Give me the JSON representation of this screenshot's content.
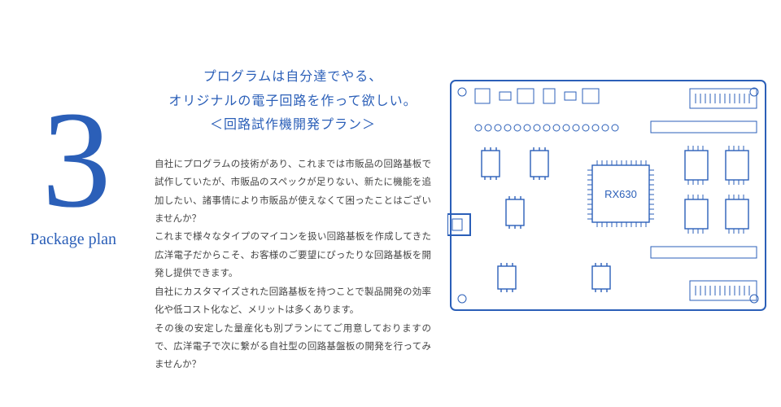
{
  "left": {
    "number": "3",
    "label": "Package plan"
  },
  "headline": {
    "line1": "プログラムは自分達でやる、",
    "line2": "オリジナルの電子回路を作って欲しい。",
    "line3": "＜回路試作機開発プラン＞"
  },
  "body": "自社にプログラムの技術があり、これまでは市販品の回路基板で試作していたが、市販品のスペックが足りない、新たに機能を追加したい、諸事情により市販品が使えなくて困ったことはございませんか？\nこれまで様々なタイプのマイコンを扱い回路基板を作成してきた広洋電子だからこそ、お客様のご要望にぴったりな回路基板を開発し提供できます。\n自社にカスタマイズされた回路基板を持つことで製品開発の効率化や低コスト化など、メリットは多くあります。\nその後の安定した量産化も別プランにてご用意しておりますので、広洋電子で次に繋がる自社型の回路基盤板の開発を行ってみませんか？",
  "pcb": {
    "chip_label": "RX630",
    "stroke_color": "#2b5fb8",
    "board_rx": 6,
    "chip_stroke_width": 1.4,
    "board_stroke_width": 2
  }
}
